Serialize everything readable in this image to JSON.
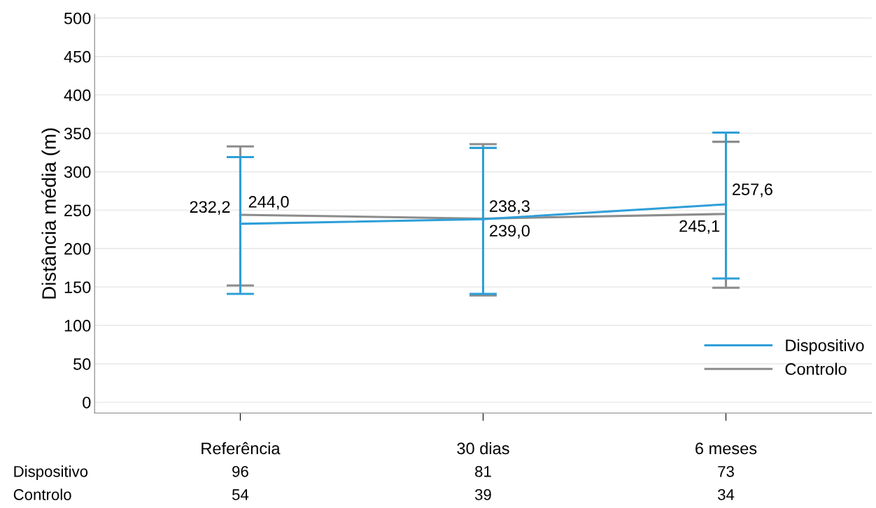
{
  "chart_data": {
    "type": "line",
    "ylabel": "Distância média (m)",
    "categories": [
      "Referência",
      "30 dias",
      "6 meses"
    ],
    "series": [
      {
        "name": "Dispositivo",
        "color": "#2e9fd8",
        "values": [
          232.2,
          238.3,
          257.6
        ],
        "errors": [
          [
            141,
            319
          ],
          [
            141,
            331
          ],
          [
            161,
            351
          ]
        ],
        "value_labels": [
          "232,2",
          "238,3",
          "257,6"
        ]
      },
      {
        "name": "Controlo",
        "color": "#8c8c8c",
        "values": [
          244.0,
          239.0,
          245.1
        ],
        "errors": [
          [
            152,
            333
          ],
          [
            139,
            336
          ],
          [
            149,
            339
          ]
        ],
        "value_labels": [
          "244,0",
          "239,0",
          "245,1"
        ]
      }
    ],
    "ylim": [
      -14,
      505
    ],
    "yticks": [
      0,
      50,
      100,
      150,
      200,
      250,
      300,
      350,
      400,
      450,
      500
    ],
    "grid": "y",
    "legend": "bottom right",
    "marker": "none",
    "line_style": "solid",
    "annotations": [
      "Dispositivo",
      "96",
      "81",
      "73",
      "Controlo",
      "54",
      "39",
      "34"
    ]
  }
}
